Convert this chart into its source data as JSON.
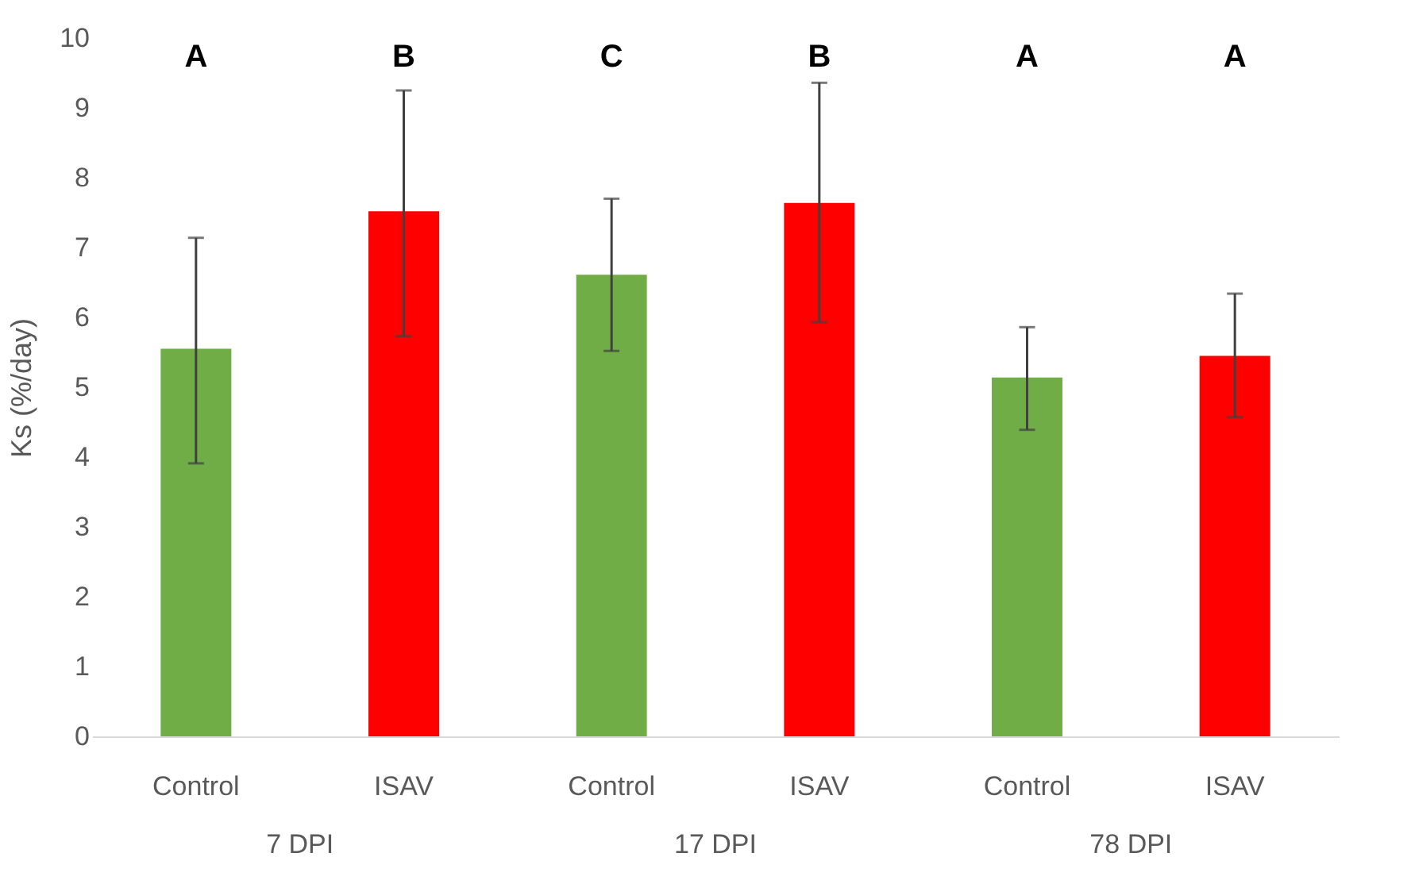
{
  "chart_data": {
    "type": "bar",
    "ylabel": "Ks (%/day)",
    "categories": [
      "7 DPI",
      "17 DPI",
      "78 DPI"
    ],
    "series": [
      {
        "name": "Control",
        "color": "#70ad47",
        "values": [
          5.55,
          6.61,
          5.14
        ],
        "errors": [
          [
            3.91,
            7.14
          ],
          [
            5.52,
            7.7
          ],
          [
            4.39,
            5.86
          ]
        ]
      },
      {
        "name": "ISAV",
        "color": "#ff0000",
        "values": [
          7.52,
          7.64,
          5.45
        ],
        "errors": [
          [
            5.73,
            9.25
          ],
          [
            5.93,
            9.36
          ],
          [
            4.57,
            6.34
          ]
        ]
      }
    ],
    "annotations": [
      "A",
      "B",
      "C",
      "B",
      "A",
      "A"
    ],
    "ylim": [
      0,
      10
    ],
    "yticks": [
      0,
      1,
      2,
      3,
      4,
      5,
      6,
      7,
      8,
      9,
      10
    ],
    "grid": false,
    "legend": false
  }
}
